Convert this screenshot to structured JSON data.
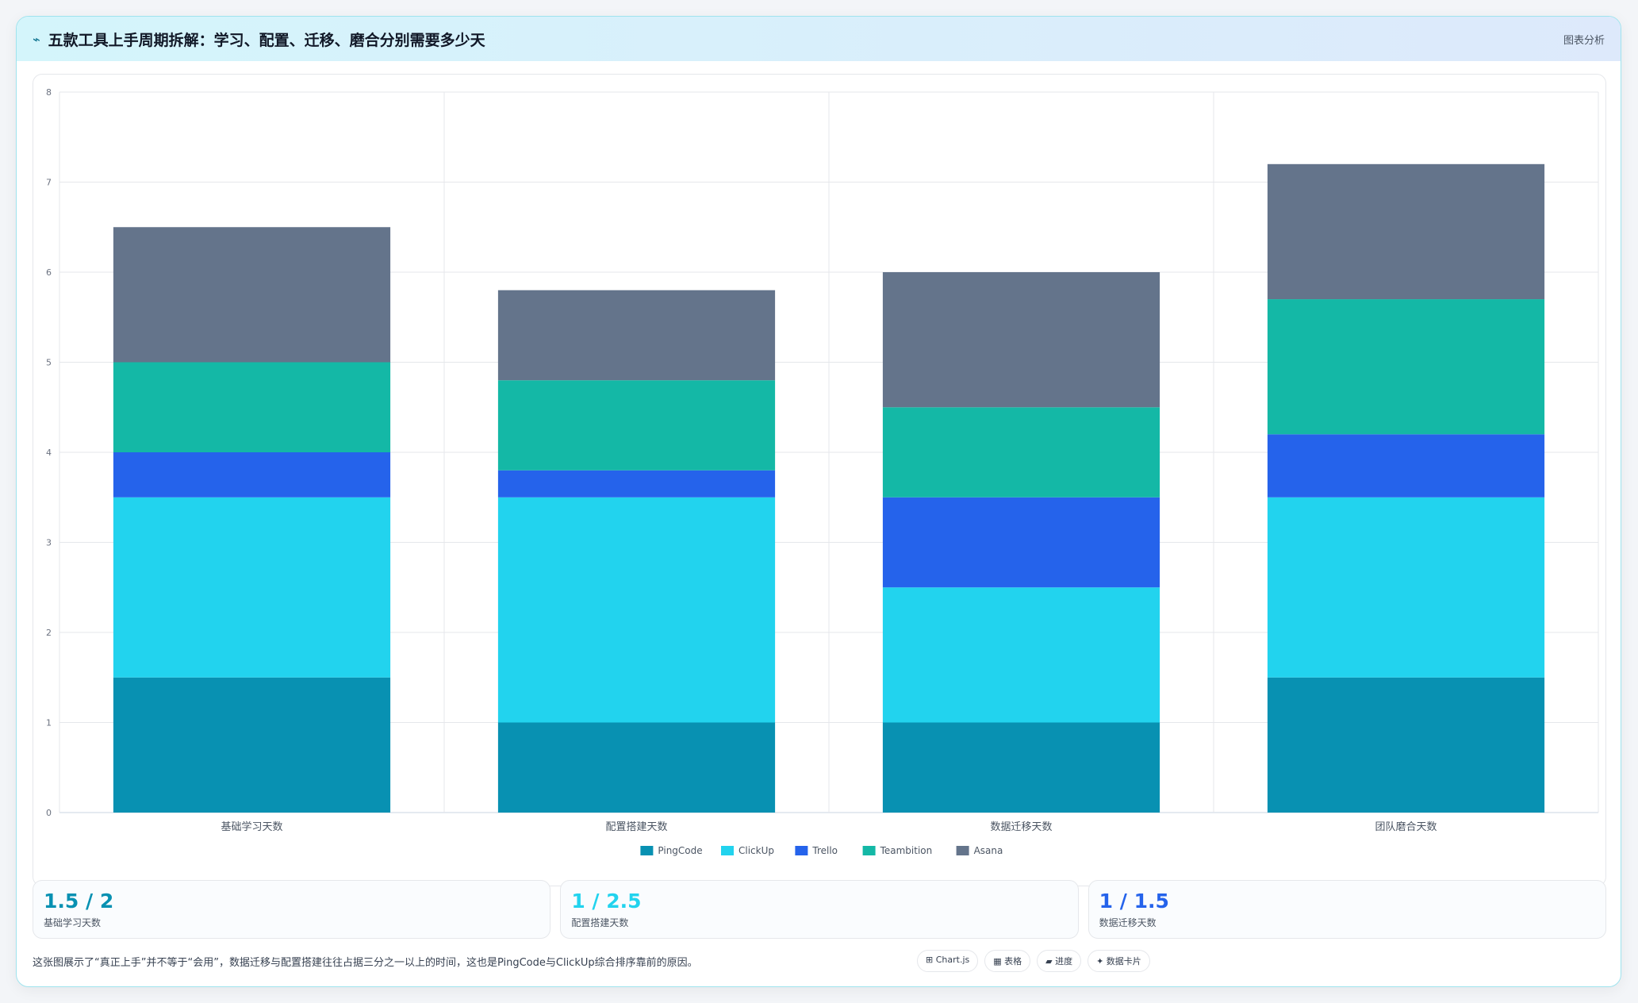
{
  "header": {
    "icon": "chart-line-icon",
    "icon_glyph": "⌁",
    "title": "五款工具上手周期拆解：学习、配置、迁移、磨合分别需要多少天",
    "tag": "图表分析"
  },
  "chart_data": {
    "type": "bar",
    "stacked": true,
    "categories": [
      "基础学习天数",
      "配置搭建天数",
      "数据迁移天数",
      "团队磨合天数"
    ],
    "series": [
      {
        "name": "PingCode",
        "color": "#0891b2",
        "values": [
          1.5,
          1,
          1,
          1.5
        ]
      },
      {
        "name": "ClickUp",
        "color": "#22d3ee",
        "values": [
          2,
          2.5,
          1.5,
          2
        ]
      },
      {
        "name": "Trello",
        "color": "#2563eb",
        "values": [
          0.5,
          0.3,
          1,
          0.7
        ]
      },
      {
        "name": "Teambition",
        "color": "#14b8a6",
        "values": [
          1,
          1,
          1,
          1.5
        ]
      },
      {
        "name": "Asana",
        "color": "#64748b",
        "values": [
          1.5,
          1,
          1.5,
          1.5
        ]
      }
    ],
    "ylim": [
      0,
      8
    ],
    "yticks": [
      "0",
      "1",
      "2",
      "3",
      "4",
      "5",
      "6",
      "7",
      "8"
    ],
    "grid": true,
    "legend": "bottom"
  },
  "cards": [
    {
      "value": "1.5 / 2",
      "label": "基础学习天数",
      "color": "#0891b2"
    },
    {
      "value": "1 / 2.5",
      "label": "配置搭建天数",
      "color": "#22d3ee"
    },
    {
      "value": "1 / 1.5",
      "label": "数据迁移天数",
      "color": "#2563eb"
    }
  ],
  "footer": {
    "note": "这张图展示了“真正上手”并不等于“会用”，数据迁移与配置搭建往往占据三分之一以上的时间，这也是PingCode与ClickUp综合排序靠前的原因。",
    "pills": [
      "⊞ Chart.js",
      "▦ 表格",
      "▰ 进度",
      "✦ 数据卡片"
    ]
  }
}
